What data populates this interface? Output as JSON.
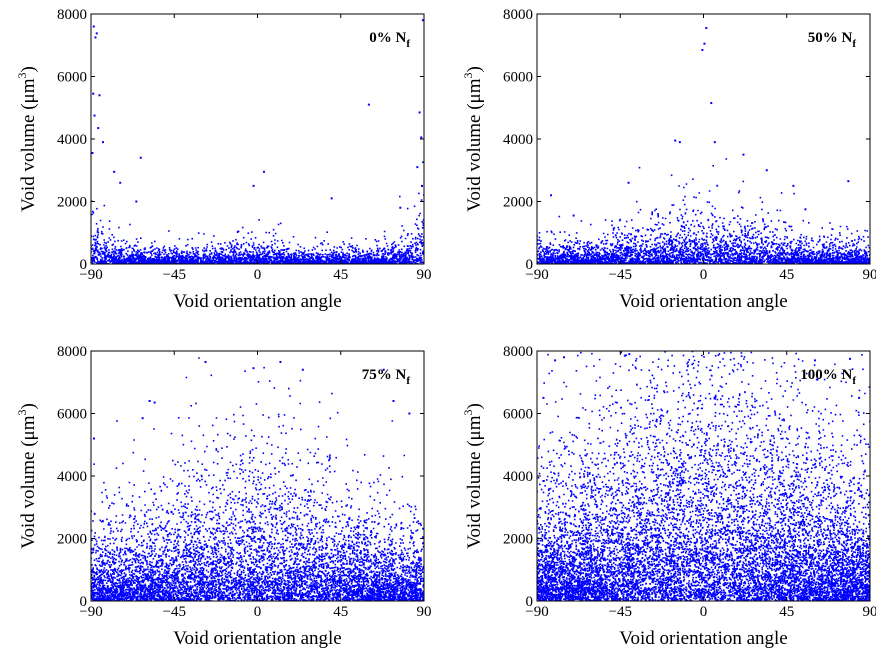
{
  "chart_data": [
    {
      "type": "scatter",
      "title": "",
      "annotation": {
        "main": "0% N",
        "sub": "f"
      },
      "xlabel": "Void orientation angle",
      "ylabel": {
        "main": "Void volume (μm",
        "sup": "3",
        "close": ")"
      },
      "xlim": [
        -90,
        90
      ],
      "ylim": [
        0,
        8000
      ],
      "xticks": [
        -90,
        -45,
        0,
        45,
        90
      ],
      "xtick_labels": [
        "−90",
        "−45",
        "0",
        "45",
        "90"
      ],
      "yticks": [
        0,
        2000,
        4000,
        6000,
        8000
      ],
      "ytick_labels": [
        "0",
        "2000",
        "4000",
        "6000",
        "8000"
      ],
      "grid": false,
      "marker_color": "#0000ff",
      "distribution": {
        "shape": "edge-peaked",
        "center_scale": 150,
        "peak_scale": 650,
        "peak_width": 9,
        "count": 3500
      },
      "points": [
        {
          "x": -88.5,
          "y": 7600
        },
        {
          "x": -87.6,
          "y": 7250
        },
        {
          "x": -86.9,
          "y": 7380
        },
        {
          "x": -88.8,
          "y": 5450
        },
        {
          "x": -85.4,
          "y": 5400
        },
        {
          "x": -88.1,
          "y": 4750
        },
        {
          "x": -89.2,
          "y": 3550
        },
        {
          "x": -83.5,
          "y": 3900
        },
        {
          "x": -86.1,
          "y": 4350
        },
        {
          "x": -77.5,
          "y": 2950
        },
        {
          "x": -74.2,
          "y": 2600
        },
        {
          "x": -63.1,
          "y": 3400
        },
        {
          "x": -65.5,
          "y": 2000
        },
        {
          "x": -2.1,
          "y": 2500
        },
        {
          "x": 3.5,
          "y": 2950
        },
        {
          "x": 60.2,
          "y": 5100
        },
        {
          "x": 87.6,
          "y": 4850
        },
        {
          "x": 89.4,
          "y": 7800
        },
        {
          "x": 88.5,
          "y": 4050
        },
        {
          "x": 86.4,
          "y": 3100
        },
        {
          "x": 88.9,
          "y": 2500
        },
        {
          "x": 40.1,
          "y": 2100
        },
        {
          "x": 77.2,
          "y": 1800
        }
      ]
    },
    {
      "type": "scatter",
      "title": "",
      "annotation": {
        "main": "50% N",
        "sub": "f"
      },
      "xlabel": "Void orientation angle",
      "ylabel": {
        "main": "Void volume (μm",
        "sup": "3",
        "close": ")"
      },
      "xlim": [
        -90,
        90
      ],
      "ylim": [
        0,
        8000
      ],
      "xticks": [
        -90,
        -45,
        0,
        45,
        90
      ],
      "xtick_labels": [
        "−90",
        "−45",
        "0",
        "45",
        "90"
      ],
      "yticks": [
        0,
        2000,
        4000,
        6000,
        8000
      ],
      "ytick_labels": [
        "0",
        "2000",
        "4000",
        "6000",
        "8000"
      ],
      "grid": false,
      "marker_color": "#0000ff",
      "distribution": {
        "shape": "center-peaked",
        "center_scale": 520,
        "tail_scale": 200,
        "width": 30,
        "count": 4000
      },
      "points": [
        {
          "x": 1.5,
          "y": 7550
        },
        {
          "x": 0.5,
          "y": 7050
        },
        {
          "x": -0.6,
          "y": 6850
        },
        {
          "x": 4.2,
          "y": 5150
        },
        {
          "x": 6.1,
          "y": 3900
        },
        {
          "x": -15.3,
          "y": 3950
        },
        {
          "x": -12.8,
          "y": 3900
        },
        {
          "x": 21.6,
          "y": 3500
        },
        {
          "x": 34.2,
          "y": 3000
        },
        {
          "x": -40.5,
          "y": 2600
        },
        {
          "x": 55.1,
          "y": 1750
        },
        {
          "x": 78.3,
          "y": 2650
        },
        {
          "x": -82.4,
          "y": 2200
        },
        {
          "x": -70.2,
          "y": 1550
        },
        {
          "x": 48.6,
          "y": 2500
        }
      ]
    },
    {
      "type": "scatter",
      "title": "",
      "annotation": {
        "main": "75% N",
        "sub": "f"
      },
      "xlabel": "Void orientation angle",
      "ylabel": {
        "main": "Void volume (μm",
        "sup": "3",
        "close": ")"
      },
      "xlim": [
        -90,
        90
      ],
      "ylim": [
        0,
        8000
      ],
      "xticks": [
        -90,
        -45,
        0,
        45,
        90
      ],
      "xtick_labels": [
        "−90",
        "−45",
        "0",
        "45",
        "90"
      ],
      "yticks": [
        0,
        2000,
        4000,
        6000,
        8000
      ],
      "ytick_labels": [
        "0",
        "2000",
        "4000",
        "6000",
        "8000"
      ],
      "grid": false,
      "marker_color": "#0000ff",
      "distribution": {
        "shape": "center-peaked",
        "center_scale": 1500,
        "tail_scale": 700,
        "width": 34,
        "count": 7500
      },
      "points": [
        {
          "x": -28.1,
          "y": 7650
        },
        {
          "x": -2.2,
          "y": 7450
        },
        {
          "x": 12.4,
          "y": 7650
        },
        {
          "x": 24.5,
          "y": 7400
        },
        {
          "x": -58.3,
          "y": 6400
        },
        {
          "x": -55.6,
          "y": 6350
        },
        {
          "x": -62.1,
          "y": 5850
        },
        {
          "x": -88.4,
          "y": 5200
        },
        {
          "x": 68.2,
          "y": 7400
        },
        {
          "x": 73.5,
          "y": 6400
        },
        {
          "x": 82.1,
          "y": 6000
        }
      ]
    },
    {
      "type": "scatter",
      "title": "",
      "annotation": {
        "main": "100% N",
        "sub": "f"
      },
      "xlabel": "Void orientation angle",
      "ylabel": {
        "main": "Void volume (μm",
        "sup": "3",
        "close": ")"
      },
      "xlim": [
        -90,
        90
      ],
      "ylim": [
        0,
        8000
      ],
      "xticks": [
        -90,
        -45,
        0,
        45,
        90
      ],
      "xtick_labels": [
        "−90",
        "−45",
        "0",
        "45",
        "90"
      ],
      "yticks": [
        0,
        2000,
        4000,
        6000,
        8000
      ],
      "ytick_labels": [
        "0",
        "2000",
        "4000",
        "6000",
        "8000"
      ],
      "grid": false,
      "marker_color": "#0000ff",
      "distribution": {
        "shape": "center-peaked",
        "center_scale": 2600,
        "tail_scale": 1100,
        "width": 40,
        "count": 11000
      },
      "points": [
        {
          "x": -80.2,
          "y": 7700
        },
        {
          "x": -75.4,
          "y": 7800
        },
        {
          "x": -42.5,
          "y": 7850
        },
        {
          "x": -40.1,
          "y": 7900
        },
        {
          "x": 60.3,
          "y": 7700
        },
        {
          "x": 79.2,
          "y": 7750
        },
        {
          "x": -86.5,
          "y": 6500
        },
        {
          "x": 84.1,
          "y": 6500
        }
      ]
    }
  ]
}
